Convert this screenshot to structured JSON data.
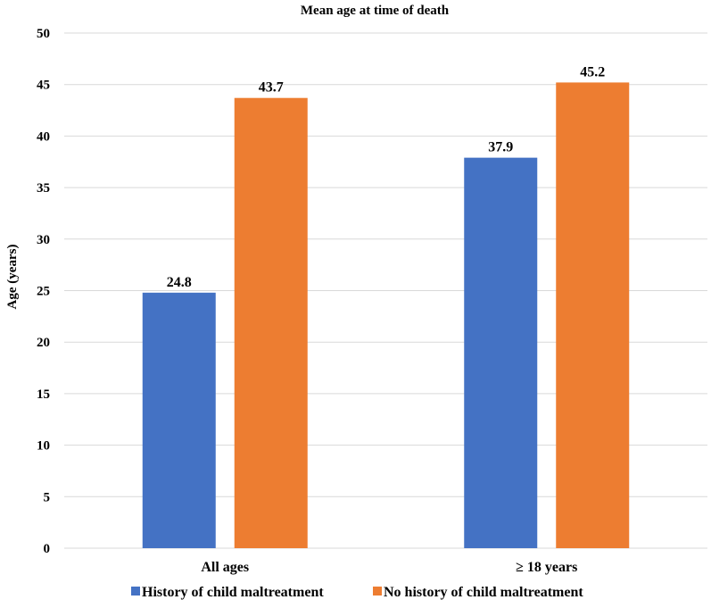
{
  "chart_data": {
    "type": "bar",
    "title": "Mean age at time of death",
    "xlabel": "",
    "ylabel": "Age (years)",
    "ylim": [
      0,
      50
    ],
    "yticks": [
      0,
      5,
      10,
      15,
      20,
      25,
      30,
      35,
      40,
      45,
      50
    ],
    "categories": [
      "All ages",
      "≥ 18 years"
    ],
    "series": [
      {
        "name": "History of child maltreatment",
        "color": "#4472C4",
        "values": [
          24.8,
          37.9
        ],
        "labels": [
          "24.8",
          "37.9"
        ]
      },
      {
        "name": "No history of child maltreatment",
        "color": "#ED7D31",
        "values": [
          43.7,
          45.2
        ],
        "labels": [
          "43.7",
          "45.2"
        ]
      }
    ],
    "grid": true,
    "legend": "bottom"
  }
}
